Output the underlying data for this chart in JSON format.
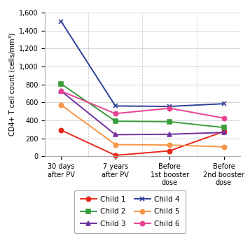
{
  "x_labels": [
    "30 days\nafter PV",
    "7 years\nafter PV",
    "Before\n1st booster\ndose",
    "Before\n2nd booster\ndose"
  ],
  "series": [
    {
      "name": "Child 1",
      "color": "#e8291c",
      "marker": "o",
      "values": [
        290,
        10,
        60,
        275
      ]
    },
    {
      "name": "Child 2",
      "color": "#3a9e3a",
      "marker": "s",
      "values": [
        805,
        390,
        385,
        320
      ]
    },
    {
      "name": "Child 3",
      "color": "#7030a0",
      "marker": "^",
      "values": [
        725,
        240,
        245,
        265
      ]
    },
    {
      "name": "Child 4",
      "color": "#2e4099",
      "marker": "x",
      "values": [
        1500,
        560,
        555,
        585
      ]
    },
    {
      "name": "Child 5",
      "color": "#f79646",
      "marker": "o",
      "values": [
        570,
        130,
        125,
        105
      ]
    },
    {
      "name": "Child 6",
      "color": "#e84393",
      "marker": "o",
      "values": [
        725,
        475,
        535,
        425
      ]
    }
  ],
  "ylabel": "CD4+ T cell count (cells/mm³)",
  "ylim": [
    0,
    1600
  ],
  "yticks": [
    0,
    200,
    400,
    600,
    800,
    1000,
    1200,
    1400,
    1600
  ],
  "ytick_labels": [
    "0",
    "200",
    "400",
    "600",
    "800",
    "1,000",
    "1,200",
    "1,400",
    "1,600"
  ],
  "background_color": "#ffffff",
  "grid_color": "#d0d0d0",
  "figsize": [
    3.57,
    3.6
  ],
  "dpi": 100
}
